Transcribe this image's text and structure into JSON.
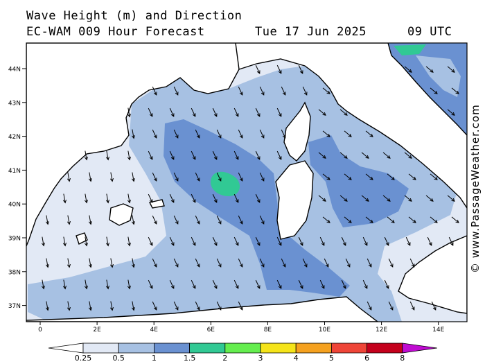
{
  "title": {
    "line1": "Wave Height (m) and Direction",
    "line2": "EC-WAM 009 Hour Forecast",
    "date": "Tue 17 Jun 2025",
    "utc": "09 UTC"
  },
  "watermark": "© www.PassageWeather.com",
  "map": {
    "lat_labels": [
      "44N",
      "43N",
      "42N",
      "41N",
      "40N",
      "39N",
      "38N",
      "37N"
    ],
    "lon_labels": [
      "0",
      "2E",
      "4E",
      "6E",
      "8E",
      "10E",
      "12E",
      "14E"
    ],
    "lon_range": [
      -0.5,
      15
    ],
    "lat_range": [
      36.5,
      44.7
    ],
    "dominant_wave_direction": "from north-west"
  },
  "legend": {
    "labels": [
      "0.25",
      "0.5",
      "1",
      "1.5",
      "2",
      "3",
      "4",
      "5",
      "6",
      "8"
    ],
    "colors": [
      "#ffffff",
      "#e2e9f5",
      "#a7c1e3",
      "#6a91d1",
      "#31c994",
      "#65ee4f",
      "#f5e41a",
      "#f5a11f",
      "#ef4538",
      "#c4001c",
      "#bf0cd1"
    ]
  }
}
